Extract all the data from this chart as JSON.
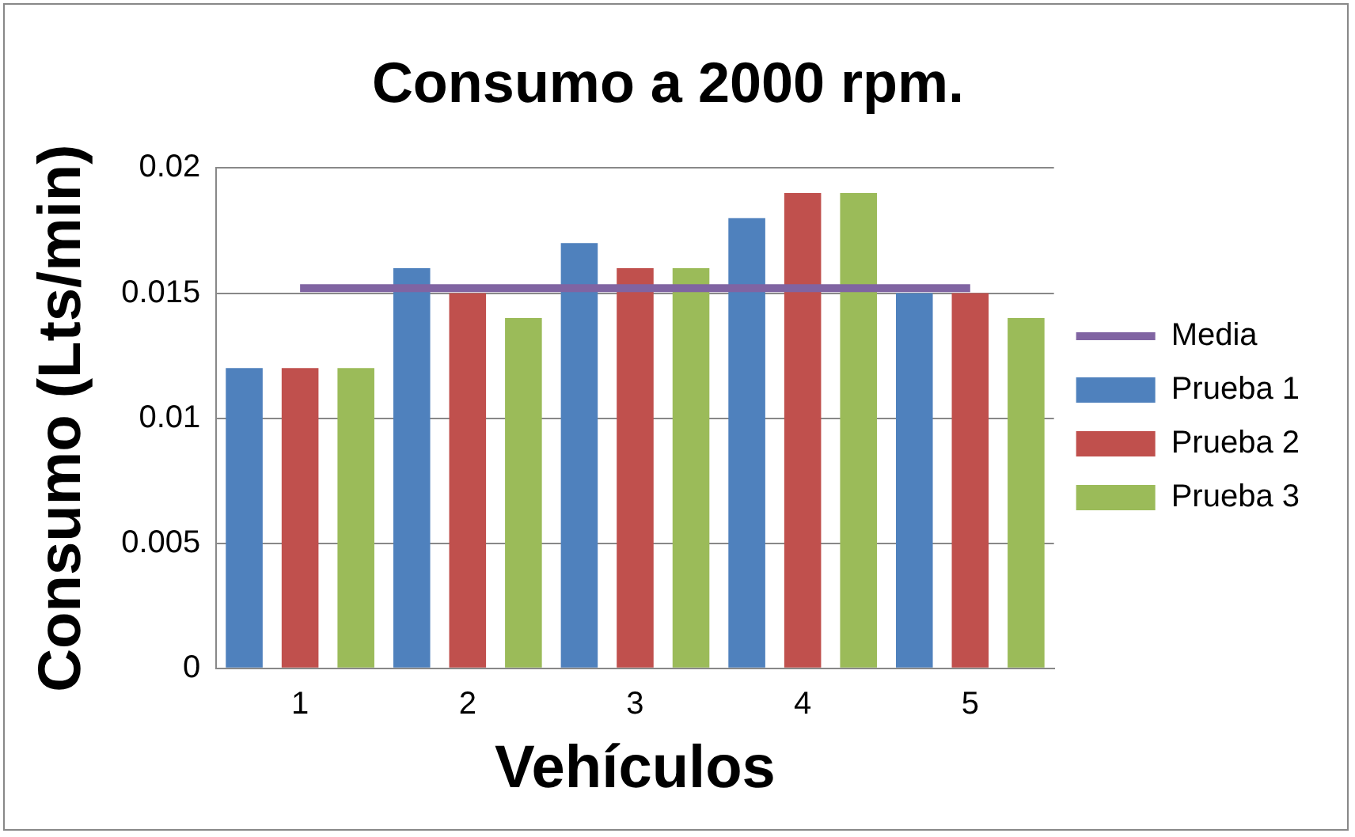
{
  "chart_data": {
    "type": "bar",
    "title": "Consumo a 2000 rpm.",
    "xlabel": "Vehículos",
    "ylabel": "Consumo (Lts/min)",
    "categories": [
      "1",
      "2",
      "3",
      "4",
      "5"
    ],
    "series": [
      {
        "name": "Prueba 1",
        "color": "#4f81bd",
        "values": [
          0.012,
          0.016,
          0.017,
          0.018,
          0.015
        ]
      },
      {
        "name": "Prueba 2",
        "color": "#c0504d",
        "values": [
          0.012,
          0.015,
          0.016,
          0.019,
          0.015
        ]
      },
      {
        "name": "Prueba 3",
        "color": "#9bbb59",
        "values": [
          0.012,
          0.014,
          0.016,
          0.019,
          0.014
        ]
      },
      {
        "name": "Media",
        "type": "line",
        "color": "#8064a2",
        "values": [
          0.0152,
          0.0152,
          0.0152,
          0.0152,
          0.0152
        ]
      }
    ],
    "ylim": [
      0,
      0.02
    ],
    "yticks": [
      0,
      0.005,
      0.01,
      0.015,
      0.02
    ],
    "grid": "y",
    "legend": "right",
    "marker": "none"
  }
}
